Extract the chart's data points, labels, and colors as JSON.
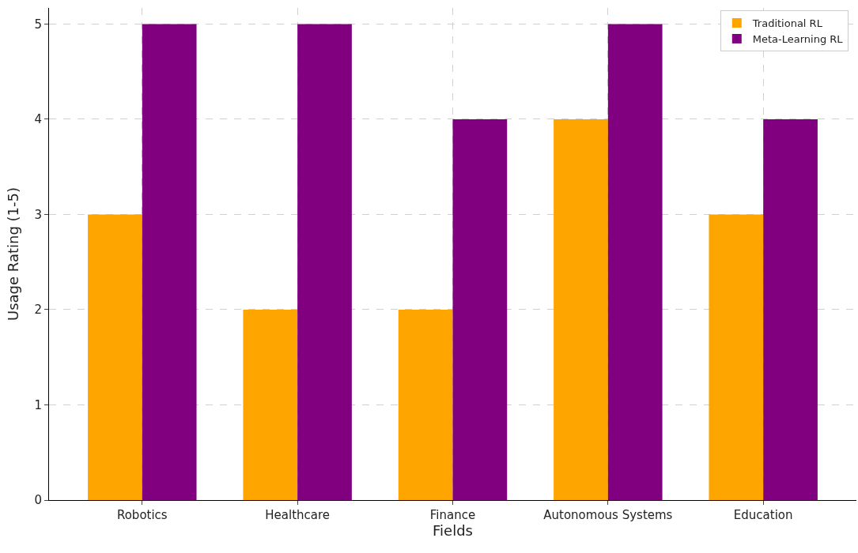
{
  "chart_data": {
    "type": "bar",
    "xlabel": "Fields",
    "ylabel": "Usage Rating (1-5)",
    "categories": [
      "Robotics",
      "Healthcare",
      "Finance",
      "Autonomous Systems",
      "Education"
    ],
    "series": [
      {
        "name": "Traditional RL",
        "color": "#ffa500",
        "values": [
          3,
          2,
          2,
          4,
          3
        ]
      },
      {
        "name": "Meta-Learning RL",
        "color": "#800080",
        "values": [
          5,
          5,
          4,
          5,
          4
        ]
      }
    ],
    "ylim": [
      0,
      5.17
    ],
    "yticks": [
      0,
      1,
      2,
      3,
      4,
      5
    ],
    "grid": true,
    "legend": "top right"
  }
}
